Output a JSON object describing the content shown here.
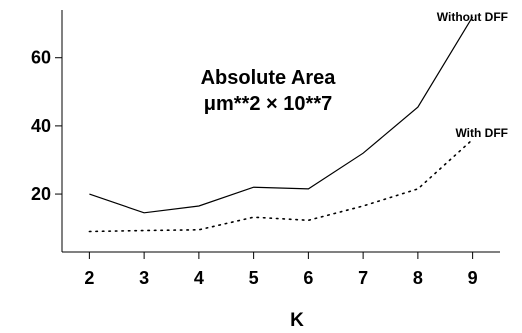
{
  "chart_data": {
    "type": "line",
    "title": "",
    "xlabel": "K",
    "ylabel": "",
    "x": [
      2,
      3,
      4,
      5,
      6,
      7,
      8,
      9
    ],
    "xlim": [
      1.5,
      9.5
    ],
    "ylim": [
      3,
      74
    ],
    "yticks": [
      20,
      40,
      60
    ],
    "grid": false,
    "annotation": {
      "line1": "Absolute Area",
      "line2": "μm**2 × 10**7"
    },
    "series": [
      {
        "name": "Without DFF",
        "style": "solid",
        "values": [
          20,
          14.5,
          16.5,
          22,
          21.5,
          32,
          45.5,
          72
        ]
      },
      {
        "name": "With DFF",
        "style": "dotted",
        "values": [
          9,
          9.3,
          9.5,
          13.2,
          12.3,
          16.5,
          21.5,
          36
        ]
      }
    ]
  }
}
